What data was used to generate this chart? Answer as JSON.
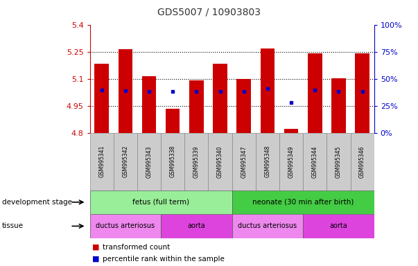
{
  "title": "GDS5007 / 10903803",
  "samples": [
    "GSM995341",
    "GSM995342",
    "GSM995343",
    "GSM995338",
    "GSM995339",
    "GSM995340",
    "GSM995347",
    "GSM995348",
    "GSM995349",
    "GSM995344",
    "GSM995345",
    "GSM995346"
  ],
  "bar_bottoms": [
    4.8,
    4.8,
    4.8,
    4.8,
    4.8,
    4.8,
    4.8,
    4.8,
    4.8,
    4.8,
    4.8,
    4.8
  ],
  "bar_tops": [
    5.185,
    5.265,
    5.115,
    4.935,
    5.095,
    5.185,
    5.1,
    5.27,
    4.825,
    5.245,
    5.105,
    5.245
  ],
  "blue_dot_y": [
    5.04,
    5.035,
    5.03,
    5.03,
    5.03,
    5.03,
    5.03,
    5.045,
    4.97,
    5.04,
    5.03,
    5.03
  ],
  "ylim": [
    4.8,
    5.4
  ],
  "yticks_left": [
    4.8,
    4.95,
    5.1,
    5.25,
    5.4
  ],
  "yticks_right_vals": [
    0,
    25,
    50,
    75,
    100
  ],
  "bar_color": "#cc0000",
  "dot_color": "#0000cc",
  "dev_stage_groups": [
    {
      "label": "fetus (full term)",
      "start": 0,
      "end": 6,
      "color": "#99ee99"
    },
    {
      "label": "neonate (30 min after birth)",
      "start": 6,
      "end": 12,
      "color": "#44cc44"
    }
  ],
  "tissue_groups": [
    {
      "label": "ductus arteriosus",
      "start": 0,
      "end": 3,
      "color": "#ee88ee"
    },
    {
      "label": "aorta",
      "start": 3,
      "end": 6,
      "color": "#dd44dd"
    },
    {
      "label": "ductus arteriosus",
      "start": 6,
      "end": 9,
      "color": "#ee88ee"
    },
    {
      "label": "aorta",
      "start": 9,
      "end": 12,
      "color": "#dd44dd"
    }
  ],
  "left_axis_color": "#cc0000",
  "right_axis_color": "#0000cc",
  "bg_color": "#ffffff",
  "sample_bg_color": "#cccccc",
  "grid_yticks": [
    4.95,
    5.1,
    5.25
  ]
}
